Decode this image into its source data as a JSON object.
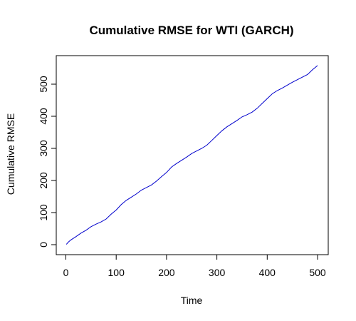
{
  "chart_data": {
    "type": "line",
    "title": "Cumulative RMSE for WTI (GARCH)",
    "xlabel": "Time",
    "ylabel": "Cumulative RMSE",
    "xlim": [
      0,
      500
    ],
    "ylim": [
      0,
      560
    ],
    "grid": false,
    "x_ticks": [
      0,
      100,
      200,
      300,
      400,
      500
    ],
    "y_ticks": [
      0,
      100,
      200,
      300,
      400,
      500
    ],
    "series": [
      {
        "color": "#0000cc",
        "x": [
          1,
          5,
          10,
          20,
          30,
          40,
          50,
          60,
          70,
          80,
          90,
          100,
          110,
          120,
          130,
          140,
          150,
          160,
          170,
          180,
          190,
          200,
          210,
          220,
          230,
          240,
          250,
          260,
          270,
          280,
          290,
          300,
          310,
          320,
          330,
          340,
          350,
          360,
          370,
          380,
          390,
          400,
          410,
          420,
          430,
          440,
          450,
          460,
          470,
          480,
          490,
          500
        ],
        "y": [
          1,
          8,
          15,
          25,
          36,
          45,
          56,
          64,
          71,
          80,
          95,
          108,
          125,
          138,
          148,
          158,
          170,
          178,
          186,
          198,
          212,
          225,
          242,
          253,
          263,
          273,
          284,
          292,
          300,
          310,
          325,
          340,
          355,
          367,
          377,
          387,
          398,
          405,
          413,
          425,
          440,
          455,
          470,
          480,
          488,
          497,
          506,
          514,
          522,
          530,
          545,
          558
        ]
      }
    ]
  }
}
